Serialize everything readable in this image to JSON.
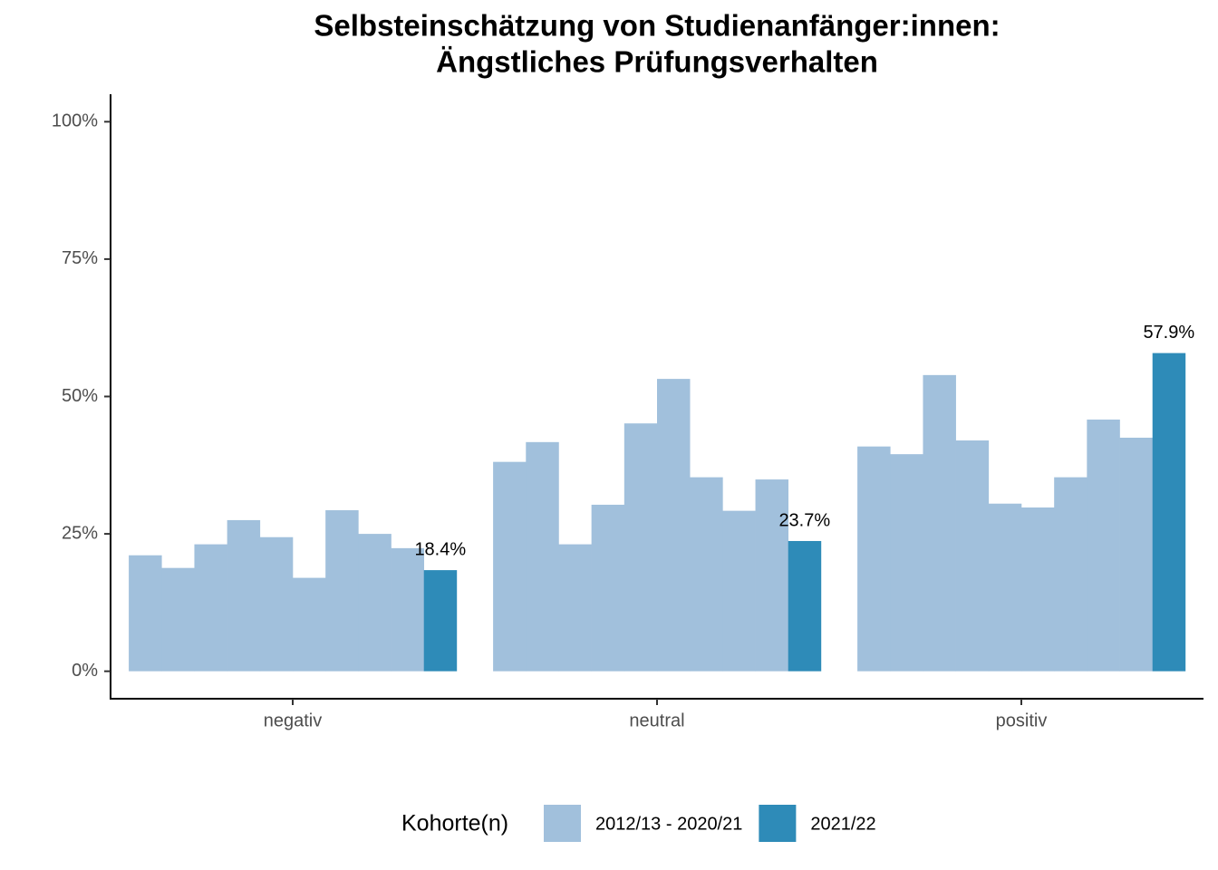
{
  "chart_data": {
    "type": "bar",
    "title": [
      "Selbsteinschätzung von Studienanfänger:innen:",
      "Ängstliches Prüfungsverhalten"
    ],
    "categories": [
      "negativ",
      "neutral",
      "positiv"
    ],
    "legend_title": "Kohorte(n)",
    "series": [
      {
        "name": "2012/13 - 2020/21",
        "color": "#a1c0dc",
        "values": [
          [
            21.1,
            18.8,
            23.1,
            27.5,
            24.4,
            17.0,
            29.3,
            25.0,
            22.4
          ],
          [
            38.1,
            41.7,
            23.1,
            30.3,
            45.1,
            53.2,
            35.3,
            29.2,
            34.9
          ],
          [
            40.9,
            39.5,
            53.9,
            42.0,
            30.5,
            29.8,
            35.3,
            45.8,
            42.5
          ]
        ]
      },
      {
        "name": "2021/22",
        "color": "#2e8bb8",
        "values": [
          18.4,
          23.7,
          57.9
        ],
        "value_labels": [
          "18.4%",
          "23.7%",
          "57.9%"
        ]
      }
    ],
    "ylim": [
      -5,
      105
    ],
    "yticks": [
      {
        "value": 0,
        "label": "0%"
      },
      {
        "value": 25,
        "label": "25%"
      },
      {
        "value": 50,
        "label": "50%"
      },
      {
        "value": 75,
        "label": "75%"
      },
      {
        "value": 100,
        "label": "100%"
      }
    ],
    "grid": false
  }
}
